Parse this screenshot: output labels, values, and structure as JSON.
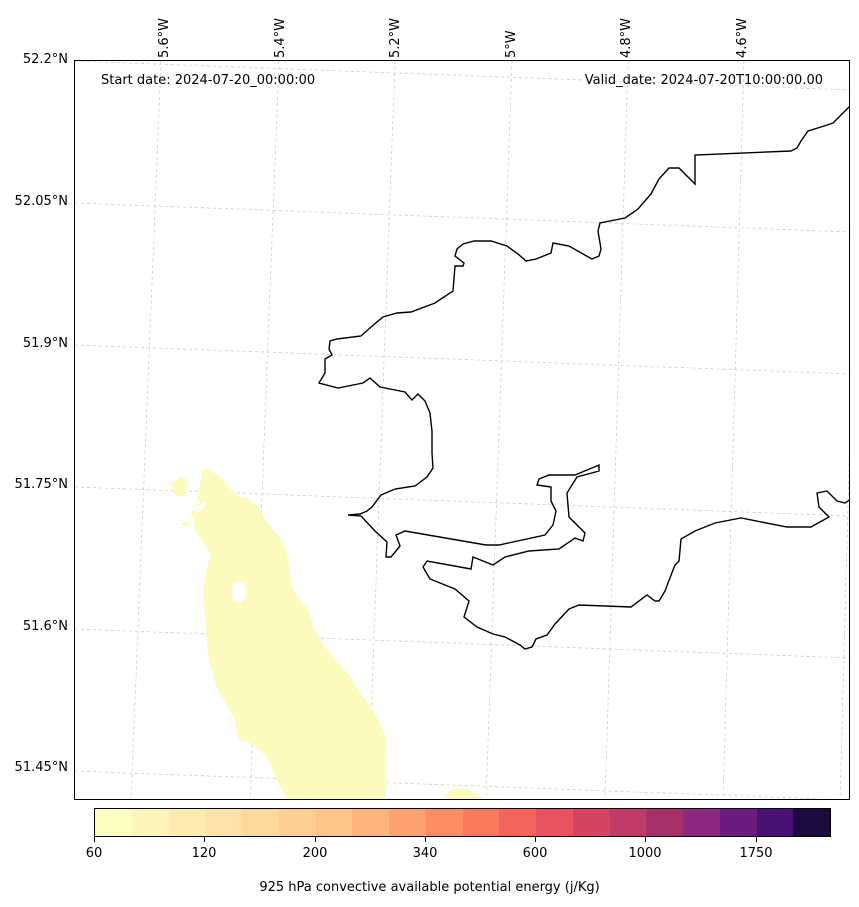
{
  "map": {
    "start_date": "Start date: 2024-07-20_00:00:00",
    "valid_date": "Valid_date: 2024-07-20T10:00:00.00",
    "longitude_labels": [
      "5.6°W",
      "5.4°W",
      "5.2°W",
      "5°W",
      "4.8°W",
      "4.6°W"
    ],
    "latitude_labels": [
      "52.2°N",
      "52.05°N",
      "51.9°N",
      "51.75°N",
      "51.6°N",
      "51.45°N"
    ],
    "coastline_color": "#000000",
    "gridline_color": "#cccccc",
    "field_fill_color": "#fcfbbd"
  },
  "colorbar": {
    "title": "925 hPa convective available potential energy (j/Kg)",
    "tick_labels": [
      "60",
      "120",
      "200",
      "340",
      "600",
      "1000",
      "1750"
    ],
    "colors": [
      "#fcfdbf",
      "#fdf4b8",
      "#fdebb0",
      "#fee2a6",
      "#fed99c",
      "#fecf92",
      "#fec488",
      "#feb47b",
      "#fea26f",
      "#fd8d62",
      "#f97a5c",
      "#f3655c",
      "#e8535f",
      "#d64463",
      "#c13b67",
      "#a83069",
      "#8c2981",
      "#6a1c80",
      "#4a1175",
      "#1d0a3e"
    ]
  }
}
